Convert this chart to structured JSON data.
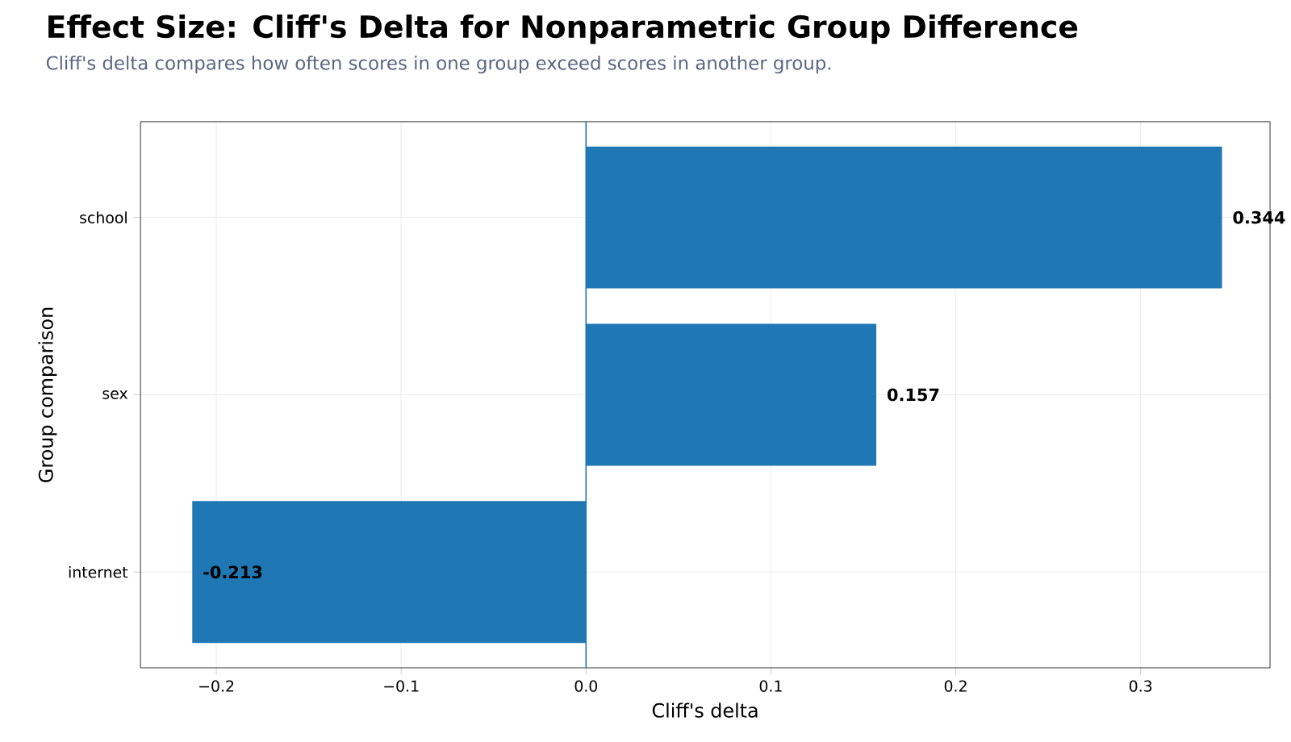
{
  "chart_data": {
    "type": "bar",
    "orientation": "horizontal",
    "title": "Effect Size: Cliff's Delta for Nonparametric Group Difference",
    "subtitle": "Cliff's delta compares how often scores in one group exceed scores in another group.",
    "xlabel": "Cliff's delta",
    "ylabel": "Group comparison",
    "categories": [
      "school",
      "sex",
      "internet"
    ],
    "values": [
      0.344,
      0.157,
      -0.213
    ],
    "color": "#1f77b4",
    "xlim": [
      -0.241,
      0.37
    ],
    "xticks": [
      {
        "value": -0.2,
        "label": "−0.2"
      },
      {
        "value": -0.1,
        "label": "−0.1"
      },
      {
        "value": 0.0,
        "label": "0.0"
      },
      {
        "value": 0.1,
        "label": "0.1"
      },
      {
        "value": 0.2,
        "label": "0.2"
      },
      {
        "value": 0.3,
        "label": "0.3"
      }
    ],
    "grid": true,
    "data_labels": true,
    "ref_lines": [
      {
        "axis": "x",
        "value": 0,
        "color": "#1f77b4"
      }
    ]
  }
}
